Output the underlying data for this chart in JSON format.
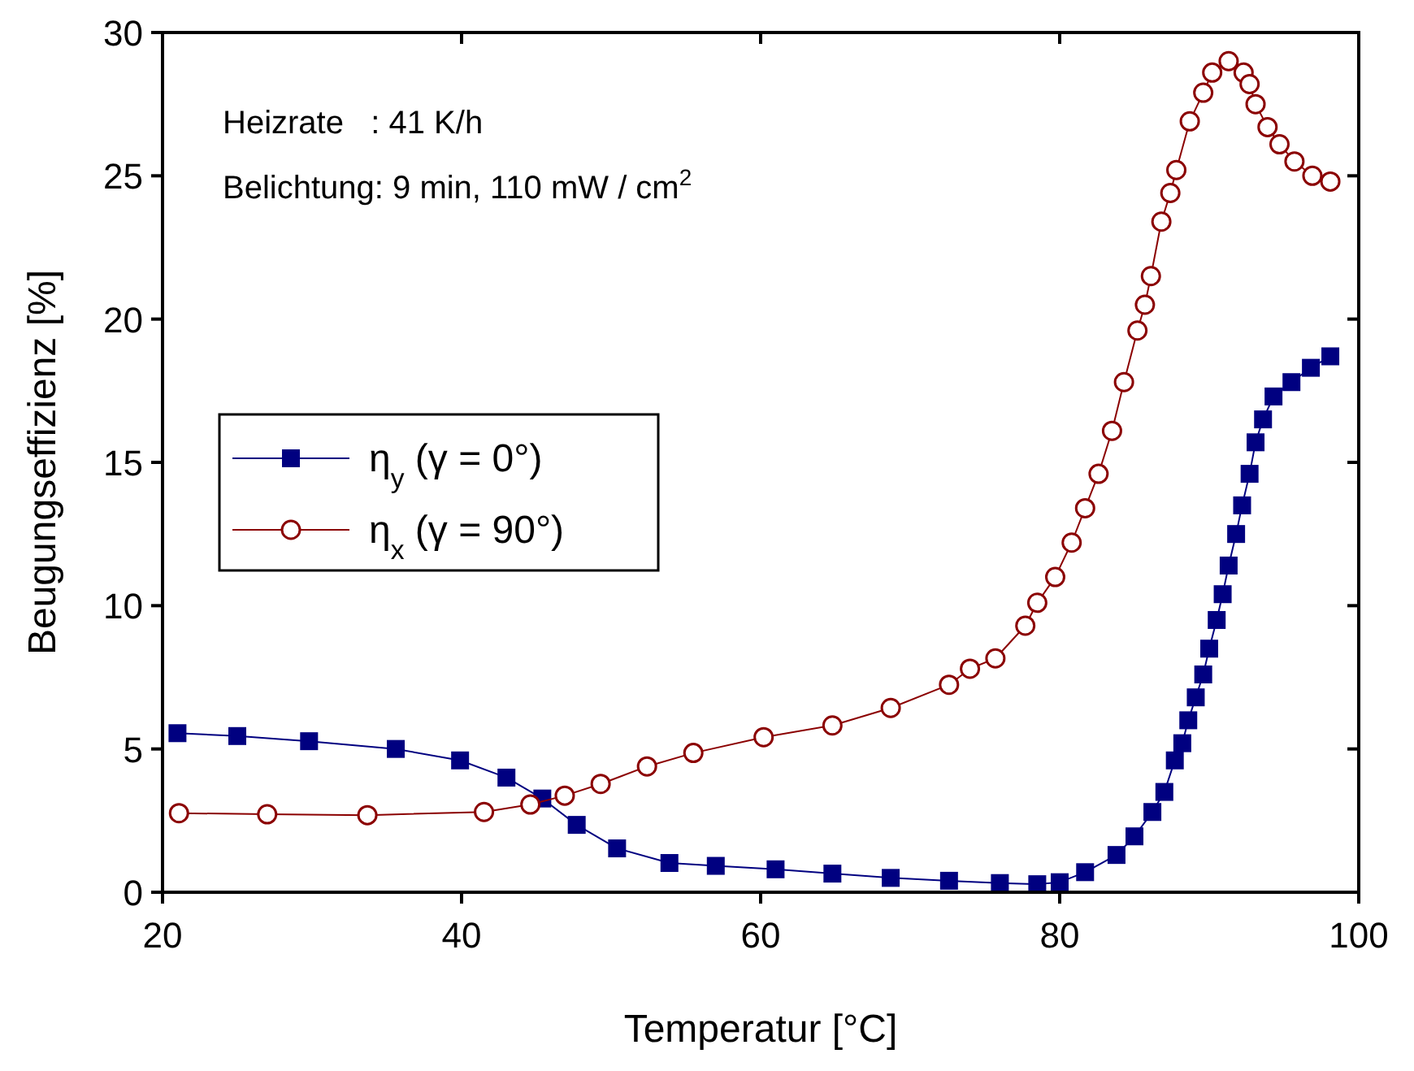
{
  "chart_data": {
    "type": "line",
    "xlabel": "Temperatur [°C]",
    "ylabel": "Beugungseffizienz [%]",
    "xlim": [
      20,
      100
    ],
    "xticks": [
      20,
      40,
      60,
      80,
      100
    ],
    "ylim": [
      0,
      30
    ],
    "yticks": [
      0,
      5,
      10,
      15,
      20,
      25,
      30
    ],
    "grid": false,
    "legend": "left",
    "annotations": [
      "Heizrate   : 41 K/h",
      "Belichtung: 9 min, 110 mW / cm$^{2}$"
    ],
    "series": [
      {
        "name": "η$_{y}$ (γ = 0°)",
        "color": "#000080",
        "marker": "square",
        "x": [
          21,
          25,
          29.8,
          35.6,
          39.9,
          43,
          45.4,
          47.7,
          50.4,
          53.9,
          57,
          61,
          64.8,
          68.7,
          72.6,
          76,
          78.5,
          80,
          81.7,
          83.8,
          85,
          86.2,
          87,
          87.7,
          88.2,
          88.6,
          89.1,
          89.6,
          90,
          90.5,
          90.9,
          91.3,
          91.8,
          92.2,
          92.7,
          93.1,
          93.6,
          94.3,
          95.5,
          96.8,
          98.1
        ],
        "values": [
          5.55,
          5.45,
          5.27,
          5.0,
          4.6,
          4.0,
          3.27,
          2.35,
          1.53,
          1.02,
          0.92,
          0.8,
          0.65,
          0.5,
          0.4,
          0.32,
          0.28,
          0.35,
          0.7,
          1.3,
          1.95,
          2.8,
          3.5,
          4.6,
          5.2,
          6.0,
          6.8,
          7.6,
          8.5,
          9.5,
          10.4,
          11.4,
          12.5,
          13.5,
          14.6,
          15.7,
          16.5,
          17.3,
          17.8,
          18.3,
          18.7
        ]
      },
      {
        "name": "η$_{x}$ (γ = 90°)",
        "color": "#8b0000",
        "marker": "circle",
        "x": [
          21.1,
          27,
          33.7,
          41.5,
          44.6,
          46.9,
          49.3,
          52.4,
          55.5,
          60.2,
          64.8,
          68.7,
          72.6,
          74,
          75.7,
          77.7,
          78.5,
          79.7,
          80.8,
          81.7,
          82.6,
          83.5,
          84.3,
          85.2,
          85.7,
          86.1,
          86.8,
          87.4,
          87.8,
          88.7,
          89.6,
          90.2,
          91.3,
          92.3,
          92.7,
          93.1,
          93.9,
          94.7,
          95.7,
          96.9,
          98.1
        ],
        "values": [
          2.76,
          2.72,
          2.69,
          2.8,
          3.06,
          3.37,
          3.78,
          4.39,
          4.86,
          5.41,
          5.82,
          6.43,
          7.24,
          7.8,
          8.16,
          9.3,
          10.1,
          11.0,
          12.2,
          13.4,
          14.6,
          16.1,
          17.8,
          19.6,
          20.5,
          21.5,
          23.4,
          24.4,
          25.2,
          26.9,
          27.9,
          28.6,
          29.0,
          28.6,
          28.2,
          27.5,
          26.7,
          26.1,
          25.5,
          25.0,
          24.8
        ]
      }
    ]
  }
}
